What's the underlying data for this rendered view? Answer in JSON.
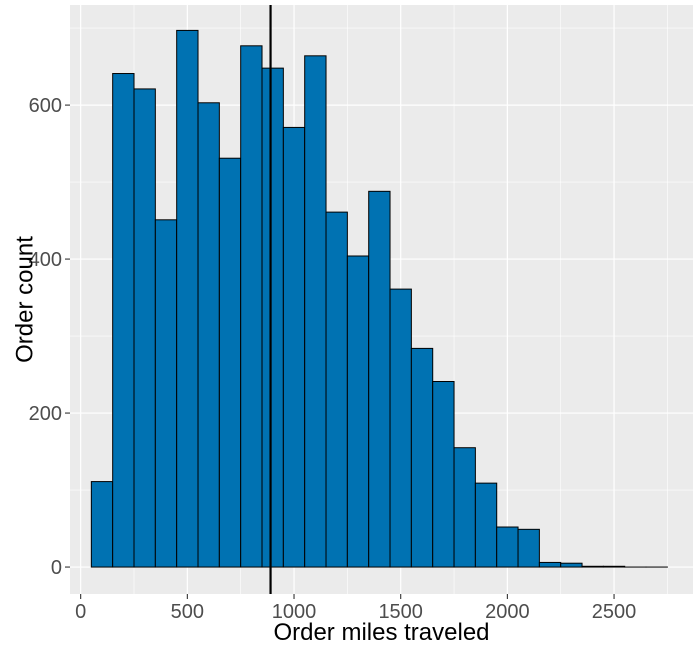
{
  "chart_data": {
    "type": "bar",
    "xlabel": "Order miles traveled",
    "ylabel": "Order count",
    "x_ticks": [
      0,
      500,
      1000,
      1500,
      2000,
      2500
    ],
    "y_ticks": [
      0,
      200,
      400,
      600
    ],
    "xlim": [
      -50,
      2870
    ],
    "ylim": [
      -35,
      730
    ],
    "bin_width": 100,
    "bins": [
      {
        "x0": 50,
        "x1": 150,
        "count": 111
      },
      {
        "x0": 150,
        "x1": 250,
        "count": 641
      },
      {
        "x0": 250,
        "x1": 350,
        "count": 621
      },
      {
        "x0": 350,
        "x1": 450,
        "count": 451
      },
      {
        "x0": 450,
        "x1": 550,
        "count": 697
      },
      {
        "x0": 550,
        "x1": 650,
        "count": 603
      },
      {
        "x0": 650,
        "x1": 750,
        "count": 531
      },
      {
        "x0": 750,
        "x1": 850,
        "count": 677
      },
      {
        "x0": 850,
        "x1": 950,
        "count": 648
      },
      {
        "x0": 950,
        "x1": 1050,
        "count": 571
      },
      {
        "x0": 1050,
        "x1": 1150,
        "count": 664
      },
      {
        "x0": 1150,
        "x1": 1250,
        "count": 461
      },
      {
        "x0": 1250,
        "x1": 1350,
        "count": 404
      },
      {
        "x0": 1350,
        "x1": 1450,
        "count": 488
      },
      {
        "x0": 1450,
        "x1": 1550,
        "count": 361
      },
      {
        "x0": 1550,
        "x1": 1650,
        "count": 284
      },
      {
        "x0": 1650,
        "x1": 1750,
        "count": 241
      },
      {
        "x0": 1750,
        "x1": 1850,
        "count": 155
      },
      {
        "x0": 1850,
        "x1": 1950,
        "count": 109
      },
      {
        "x0": 1950,
        "x1": 2050,
        "count": 52
      },
      {
        "x0": 2050,
        "x1": 2150,
        "count": 49
      },
      {
        "x0": 2150,
        "x1": 2250,
        "count": 6
      },
      {
        "x0": 2250,
        "x1": 2350,
        "count": 5
      },
      {
        "x0": 2350,
        "x1": 2450,
        "count": 1
      },
      {
        "x0": 2450,
        "x1": 2550,
        "count": 1
      },
      {
        "x0": 2550,
        "x1": 2650,
        "count": 0
      },
      {
        "x0": 2650,
        "x1": 2750,
        "count": 0
      }
    ],
    "vline_x": 890,
    "colors": {
      "bar_fill": "#0072B2",
      "bar_stroke": "#000000",
      "panel_bg": "#EBEBEB",
      "grid": "#FFFFFF",
      "vline": "#000000"
    },
    "grid": true,
    "legend": "none"
  }
}
